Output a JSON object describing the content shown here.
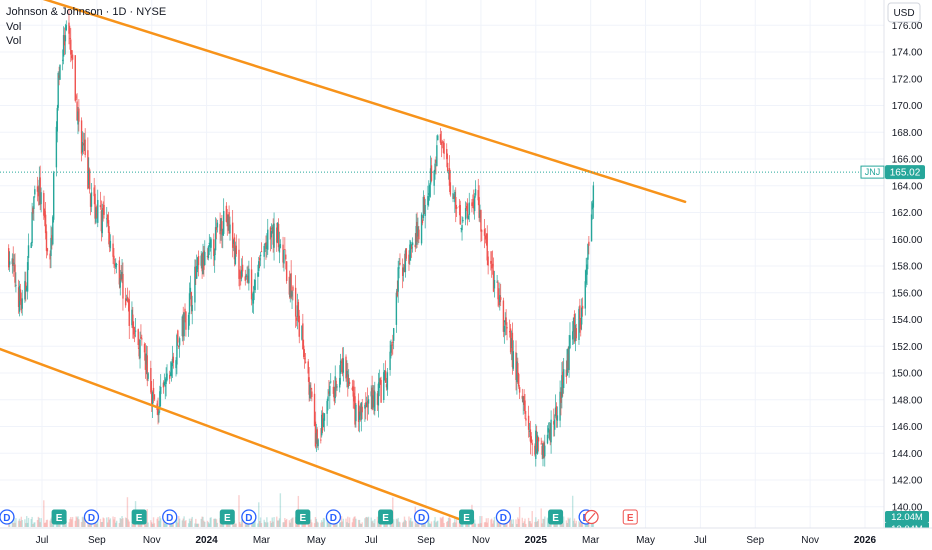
{
  "header": {
    "title": "Johnson & Johnson · 1D · NYSE",
    "line2": "Vol",
    "line3": "Vol"
  },
  "currency": "USD",
  "colors": {
    "up": "#26a69a",
    "down": "#ef5350",
    "trend": "#f7931a",
    "last_price": "#26a69a"
  },
  "last_price": {
    "symbol": "JNJ",
    "value": "165.02"
  },
  "volume_labels": [
    "12.04M",
    "12.04M"
  ],
  "chart_data": {
    "type": "candlestick",
    "symbol": "JNJ",
    "interval": "1D",
    "y_ticks": [
      "140.00",
      "142.00",
      "144.00",
      "146.00",
      "148.00",
      "150.00",
      "152.00",
      "154.00",
      "156.00",
      "158.00",
      "160.00",
      "162.00",
      "164.00",
      "166.00",
      "168.00",
      "170.00",
      "172.00",
      "174.00",
      "176.00"
    ],
    "x_ticks": [
      {
        "label": "Jul",
        "bold": false
      },
      {
        "label": "Sep",
        "bold": false
      },
      {
        "label": "Nov",
        "bold": false
      },
      {
        "label": "2024",
        "bold": true
      },
      {
        "label": "Mar",
        "bold": false
      },
      {
        "label": "May",
        "bold": false
      },
      {
        "label": "Jul",
        "bold": false
      },
      {
        "label": "Sep",
        "bold": false
      },
      {
        "label": "Nov",
        "bold": false
      },
      {
        "label": "2025",
        "bold": true
      },
      {
        "label": "Mar",
        "bold": false
      },
      {
        "label": "May",
        "bold": false
      },
      {
        "label": "Jul",
        "bold": false
      },
      {
        "label": "Sep",
        "bold": false
      },
      {
        "label": "Nov",
        "bold": false
      },
      {
        "label": "2026",
        "bold": true
      }
    ],
    "price_path": [
      [
        "2023-05-25",
        159.0
      ],
      [
        "2023-06-10",
        154.5
      ],
      [
        "2023-06-25",
        165.0
      ],
      [
        "2023-07-10",
        158.0
      ],
      [
        "2023-07-20",
        173.0
      ],
      [
        "2023-07-30",
        175.5
      ],
      [
        "2023-08-10",
        169.0
      ],
      [
        "2023-08-25",
        163.0
      ],
      [
        "2023-09-10",
        161.0
      ],
      [
        "2023-09-25",
        157.5
      ],
      [
        "2023-10-10",
        153.5
      ],
      [
        "2023-10-25",
        150.5
      ],
      [
        "2023-11-05",
        147.0
      ],
      [
        "2023-11-20",
        150.0
      ],
      [
        "2023-12-05",
        153.5
      ],
      [
        "2023-12-20",
        157.5
      ],
      [
        "2024-01-05",
        159.0
      ],
      [
        "2024-01-20",
        162.0
      ],
      [
        "2024-02-05",
        158.0
      ],
      [
        "2024-02-20",
        156.5
      ],
      [
        "2024-03-05",
        159.5
      ],
      [
        "2024-03-20",
        160.5
      ],
      [
        "2024-04-05",
        155.5
      ],
      [
        "2024-04-20",
        151.0
      ],
      [
        "2024-05-01",
        144.5
      ],
      [
        "2024-05-15",
        148.0
      ],
      [
        "2024-06-01",
        150.5
      ],
      [
        "2024-06-15",
        146.5
      ],
      [
        "2024-07-01",
        148.0
      ],
      [
        "2024-07-20",
        149.5
      ],
      [
        "2024-08-01",
        157.5
      ],
      [
        "2024-08-20",
        160.0
      ],
      [
        "2024-09-05",
        165.0
      ],
      [
        "2024-09-15",
        167.5
      ],
      [
        "2024-09-25",
        164.5
      ],
      [
        "2024-10-10",
        161.5
      ],
      [
        "2024-10-25",
        163.5
      ],
      [
        "2024-11-10",
        158.0
      ],
      [
        "2024-11-25",
        154.0
      ],
      [
        "2024-12-10",
        150.0
      ],
      [
        "2024-12-25",
        145.0
      ],
      [
        "2025-01-10",
        144.5
      ],
      [
        "2025-01-25",
        147.5
      ],
      [
        "2025-02-10",
        153.0
      ],
      [
        "2025-02-20",
        154.5
      ],
      [
        "2025-03-01",
        160.0
      ],
      [
        "2025-03-05",
        165.0
      ]
    ],
    "volume_markers": [
      {
        "label": "D",
        "date": "2023-05-23",
        "type": "dividend"
      },
      {
        "label": "E",
        "date": "2023-07-20",
        "type": "earnings"
      },
      {
        "label": "D",
        "date": "2023-08-25",
        "type": "dividend"
      },
      {
        "label": "E",
        "date": "2023-10-17",
        "type": "earnings"
      },
      {
        "label": "D",
        "date": "2023-11-20",
        "type": "dividend"
      },
      {
        "label": "E",
        "date": "2024-01-23",
        "type": "earnings"
      },
      {
        "label": "D",
        "date": "2024-02-16",
        "type": "dividend"
      },
      {
        "label": "E",
        "date": "2024-04-16",
        "type": "earnings"
      },
      {
        "label": "D",
        "date": "2024-05-20",
        "type": "dividend"
      },
      {
        "label": "E",
        "date": "2024-07-17",
        "type": "earnings"
      },
      {
        "label": "D",
        "date": "2024-08-26",
        "type": "dividend"
      },
      {
        "label": "E",
        "date": "2024-10-15",
        "type": "earnings"
      },
      {
        "label": "D",
        "date": "2024-11-25",
        "type": "dividend"
      },
      {
        "label": "E",
        "date": "2025-01-22",
        "type": "earnings"
      },
      {
        "label": "D",
        "date": "2025-02-25",
        "type": "dividend"
      },
      {
        "label": "E",
        "date": "2025-04-15",
        "type": "earnings-upcoming"
      }
    ],
    "trendlines": [
      {
        "start": [
          "2023-05-15",
          179.0
        ],
        "end": [
          "2025-06-15",
          162.8
        ]
      },
      {
        "start": [
          "2023-05-15",
          151.8
        ],
        "end": [
          "2024-10-10",
          139.0
        ]
      }
    ],
    "grid": true
  }
}
